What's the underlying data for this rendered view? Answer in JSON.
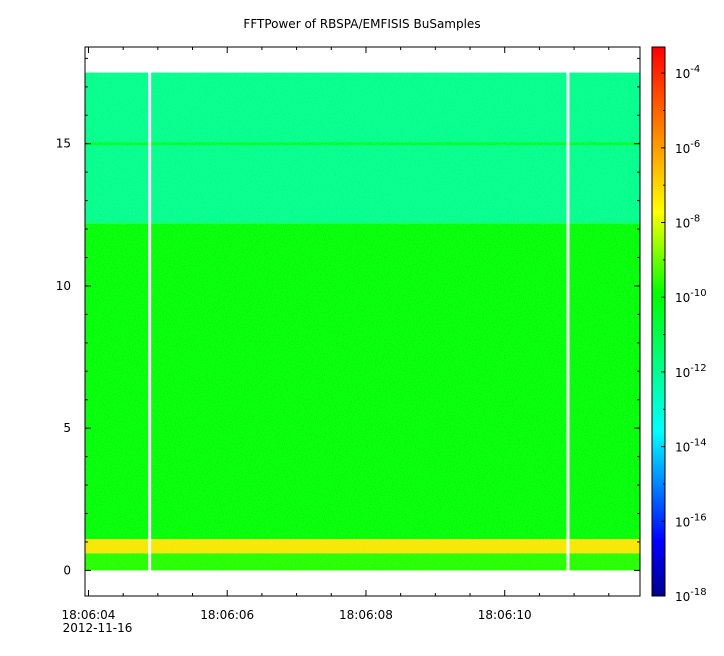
{
  "chart_data": {
    "type": "heatmap",
    "title": "FFTPower of RBSPA/EMFISIS  BuSamples",
    "xlabel": "",
    "ylabel": "",
    "x_ticks": [
      {
        "label": "18:06:04",
        "t": 4.0
      },
      {
        "label": "18:06:06",
        "t": 6.0
      },
      {
        "label": "18:06:08",
        "t": 8.0
      },
      {
        "label": "18:06:10",
        "t": 10.0
      }
    ],
    "x_date_label": "2012-11-16",
    "xlim_seconds": [
      3.95,
      11.95
    ],
    "y_ticks": [
      0,
      5,
      10,
      15
    ],
    "ylim": [
      -0.9,
      18.4
    ],
    "data_y_range": [
      0,
      17.5
    ],
    "gaps_seconds": [
      [
        4.86,
        4.9
      ],
      [
        10.89,
        10.93
      ]
    ],
    "bands": [
      {
        "y_range": [
          12.2,
          17.5
        ],
        "log10_power": -12.0
      },
      {
        "y_range": [
          1.1,
          12.2
        ],
        "log10_power": -10.0
      },
      {
        "y_range": [
          0.6,
          1.1
        ],
        "log10_power": -7.3
      },
      {
        "y_range": [
          0.0,
          0.6
        ],
        "log10_power": -9.6
      },
      {
        "y_range": [
          14.95,
          15.05
        ],
        "log10_power": -10.5
      }
    ],
    "colorbar": {
      "scale": "log",
      "range_exponent": [
        -18,
        -3.3
      ],
      "tick_exponents": [
        -4,
        -6,
        -8,
        -10,
        -12,
        -14,
        -16,
        -18
      ],
      "tick_base": "10",
      "colors": [
        "#00008f",
        "#0000ff",
        "#00ffff",
        "#00ff00",
        "#ffff00",
        "#ff8000",
        "#ff0000"
      ]
    }
  }
}
